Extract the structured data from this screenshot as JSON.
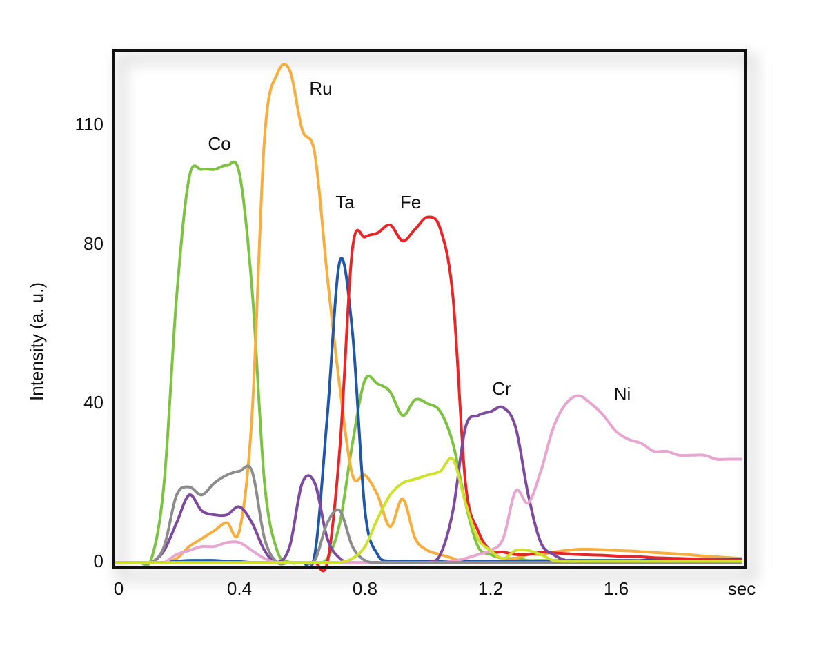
{
  "chart_data": {
    "type": "line",
    "y_label": "Intensity (a. u.)",
    "x": [
      0,
      0.04,
      0.08,
      0.12,
      0.16,
      0.2,
      0.24,
      0.28,
      0.32,
      0.36,
      0.4,
      0.44,
      0.48,
      0.52,
      0.56,
      0.6,
      0.64,
      0.68,
      0.72,
      0.76,
      0.8,
      0.84,
      0.88,
      0.92,
      0.96,
      1,
      1.04,
      1.08,
      1.12,
      1.16,
      1.2,
      1.24,
      1.28,
      1.32,
      1.36,
      1.4,
      1.44,
      1.48,
      1.52,
      1.56,
      1.6,
      1.64,
      1.68,
      1.72,
      1.76,
      1.8,
      1.84,
      1.88,
      1.92,
      1.96,
      2
    ],
    "xlim": [
      0,
      2
    ],
    "xticks": [
      0,
      0.4,
      0.8,
      1.2,
      1.6,
      {
        "value": 2,
        "label": "sec"
      }
    ],
    "ylim": [
      -1.2,
      129
    ],
    "yticks": [
      0,
      40,
      80,
      110
    ],
    "series": [
      {
        "name": "Co",
        "color": "#7dc242",
        "values": [
          0,
          0,
          0,
          1,
          20,
          67,
          97,
          99,
          99,
          100,
          98,
          69,
          20,
          3,
          0,
          0,
          0,
          1,
          10,
          30,
          46,
          45,
          43,
          37,
          41,
          40,
          38,
          30,
          15,
          4,
          2,
          1,
          1,
          0.5,
          0.5,
          0.5,
          0.5,
          0.5,
          0.5,
          0.5,
          0.5,
          0.5,
          0.5,
          0.5,
          0.5,
          0.5,
          0.5,
          0.5,
          0.5,
          0.5,
          0.5
        ]
      },
      {
        "name": "Ru",
        "color": "#f7ae3f",
        "values": [
          0,
          0,
          0,
          0,
          0,
          1,
          4,
          6,
          8,
          10,
          8,
          37,
          107,
          123,
          124,
          109,
          103,
          72,
          44,
          22,
          22,
          17,
          9,
          16,
          6,
          3,
          2,
          1,
          0,
          0,
          0,
          0.5,
          1,
          2,
          2,
          2.6,
          3,
          3.3,
          3.3,
          3.2,
          3,
          2.9,
          2.7,
          2.5,
          2.3,
          2.1,
          1.9,
          1.6,
          1.4,
          1.2,
          1
        ]
      },
      {
        "name": "Ta",
        "color": "#2157a6",
        "values": [
          0,
          0,
          0,
          0,
          0,
          0.3,
          0.5,
          0.5,
          0.5,
          0.3,
          0.2,
          0,
          0,
          0,
          0,
          0,
          2,
          37,
          76,
          58,
          13,
          2,
          0.3,
          0.3,
          0.3,
          0.3,
          0.3,
          0.3,
          0.3,
          0.3,
          0.3,
          0.3,
          0.3,
          0.3,
          0.3,
          0.3,
          0.5,
          0.5,
          0.5,
          0.5,
          0.5,
          0.5,
          0.5,
          0.8,
          0.8,
          0.8,
          0.8,
          0.8,
          0.8,
          0.8,
          0.8
        ]
      },
      {
        "name": "Fe",
        "color": "#e8262a",
        "values": [
          0,
          0,
          0,
          0,
          0,
          0,
          0,
          0,
          0,
          0,
          0,
          0,
          0,
          0,
          0,
          0,
          0,
          0,
          29,
          79,
          82,
          83,
          85,
          81,
          84,
          87,
          84,
          67,
          20,
          8,
          3,
          2.6,
          2,
          2,
          2.6,
          2.4,
          2.2,
          2,
          1.9,
          1.8,
          1.6,
          1.5,
          1.4,
          1.2,
          1.1,
          1,
          0.9,
          0.8,
          0.7,
          0.6,
          0.5
        ]
      },
      {
        "name": "Cr",
        "color": "#7e4a9e",
        "values": [
          0,
          0,
          0,
          0,
          3,
          10,
          17,
          13,
          12,
          12,
          14,
          10,
          3,
          0,
          4,
          20,
          20,
          6,
          1,
          0,
          0,
          0,
          0,
          0,
          0,
          0,
          2,
          13,
          34,
          37,
          38,
          39,
          34,
          17,
          5,
          2,
          0.5,
          0,
          0,
          0,
          0,
          0,
          0,
          0,
          0,
          0,
          0,
          0,
          0,
          0,
          0
        ]
      },
      {
        "name": "Ni",
        "color": "#e7a6d0",
        "values": [
          0,
          0,
          0,
          0,
          0,
          2,
          3,
          4,
          4,
          5,
          5,
          3,
          1,
          0,
          0,
          0,
          0,
          0,
          0,
          0,
          0,
          0,
          0,
          0,
          0,
          0,
          0,
          0.3,
          1,
          2,
          3,
          6,
          18,
          15,
          23,
          34,
          40,
          42,
          40,
          37,
          33,
          31,
          30,
          28,
          28,
          27,
          27,
          27,
          26,
          26,
          26
        ]
      },
      {
        "color": "#8c8c8c",
        "values": [
          0,
          0,
          0,
          0,
          4,
          17,
          19,
          17,
          20,
          22,
          23,
          23,
          6,
          0,
          0,
          0,
          0.5,
          10,
          13,
          4,
          0.5,
          0,
          0,
          0,
          0,
          0,
          0,
          0,
          0,
          0,
          0,
          0,
          0,
          0,
          0,
          0,
          0,
          0,
          0,
          0,
          0,
          0,
          0,
          0,
          0,
          0,
          0,
          0,
          0,
          0,
          0
        ]
      },
      {
        "color": "#cde12e",
        "values": [
          0,
          0,
          0,
          0,
          0,
          0,
          0,
          0,
          0,
          0,
          0,
          0,
          0,
          0,
          0,
          0,
          0,
          0,
          0,
          1,
          4,
          11,
          17,
          20,
          21,
          22,
          23,
          26,
          15,
          6,
          3,
          1,
          3,
          3,
          2,
          0.5,
          0.3,
          0.3,
          0.3,
          0.3,
          0.3,
          0.3,
          0.3,
          0.3,
          0.3,
          0.3,
          0.3,
          0.3,
          0.3,
          0.3,
          0.3
        ]
      }
    ]
  }
}
